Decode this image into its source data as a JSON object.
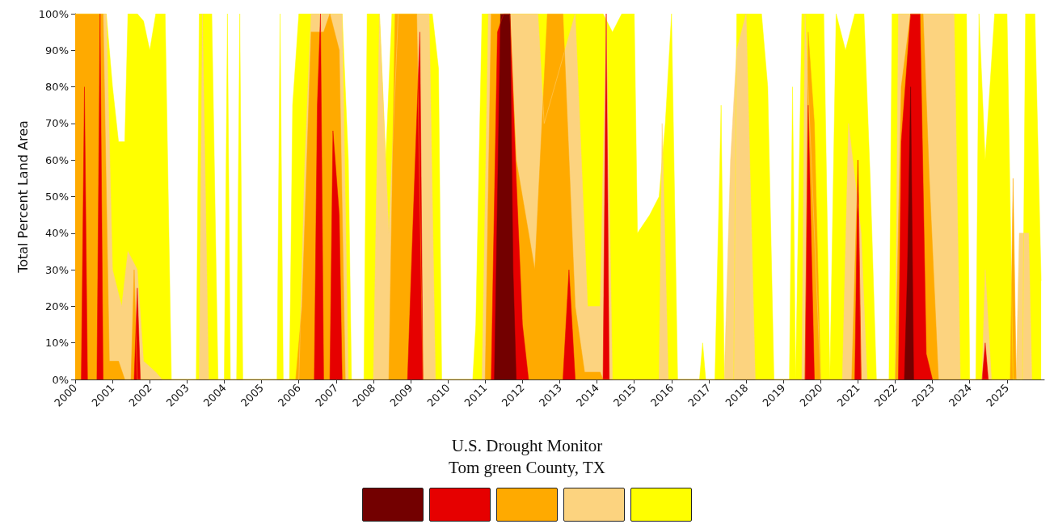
{
  "chart_data": {
    "type": "area",
    "title": "U.S. Drought Monitor",
    "subtitle": "Tom green County, TX",
    "ylabel": "Total Percent Land Area",
    "xlim": [
      "2000-01-01",
      "2026-01-01"
    ],
    "xticks": [
      "2000",
      "2001",
      "2002",
      "2003",
      "2004",
      "2005",
      "2006",
      "2007",
      "2008",
      "2009",
      "2010",
      "2011",
      "2012",
      "2013",
      "2014",
      "2015",
      "2016",
      "2017",
      "2018",
      "2019",
      "2020",
      "2021",
      "2022",
      "2023",
      "2024",
      "2025"
    ],
    "ylim": [
      0,
      100
    ],
    "yticks": [
      {
        "value": 0,
        "label": "0%"
      },
      {
        "value": 10,
        "label": "10%"
      },
      {
        "value": 20,
        "label": "20%"
      },
      {
        "value": 30,
        "label": "30%"
      },
      {
        "value": 40,
        "label": "40%"
      },
      {
        "value": 50,
        "label": "50%"
      },
      {
        "value": 60,
        "label": "60%"
      },
      {
        "value": 70,
        "label": "70%"
      },
      {
        "value": 80,
        "label": "80%"
      },
      {
        "value": 90,
        "label": "90%"
      },
      {
        "value": 100,
        "label": "100%"
      }
    ],
    "grid": false,
    "series": [
      {
        "color": "#ffff00",
        "x": [
          "2000-01",
          "2000-11",
          "2001-01",
          "2001-03",
          "2001-05",
          "2001-06",
          "2001-09",
          "2001-11",
          "2002-01",
          "2002-03",
          "2002-06",
          "2002-08",
          "2003-04",
          "2003-05",
          "2003-09",
          "2003-11",
          "2004-01",
          "2004-02",
          "2004-03",
          "2004-05",
          "2004-06",
          "2004-07",
          "2005-06",
          "2005-07",
          "2005-08",
          "2005-10",
          "2005-11",
          "2006-01",
          "2007-03",
          "2007-05",
          "2007-06",
          "2007-10",
          "2007-11",
          "2008-03",
          "2008-05",
          "2008-07",
          "2009-08",
          "2009-10",
          "2009-11",
          "2010-09",
          "2010-10",
          "2010-12",
          "2012-09",
          "2013-03",
          "2014-03",
          "2014-06",
          "2014-09",
          "2015-01",
          "2015-02",
          "2015-06",
          "2015-09",
          "2015-11",
          "2016-01",
          "2016-03",
          "2016-10",
          "2016-11",
          "2016-12",
          "2017-03",
          "2017-05",
          "2017-06",
          "2017-09",
          "2017-10",
          "2018-06",
          "2018-08",
          "2018-10",
          "2019-03",
          "2019-04",
          "2019-05",
          "2019-07",
          "2020-02",
          "2020-04",
          "2020-06",
          "2020-09",
          "2020-12",
          "2021-03",
          "2021-05",
          "2021-07",
          "2021-11",
          "2021-12",
          "2023-12",
          "2024-01",
          "2024-03",
          "2024-04",
          "2024-06",
          "2024-09",
          "2025-01",
          "2025-03",
          "2025-06",
          "2025-07",
          "2025-10",
          "2025-12"
        ],
        "values": [
          100,
          100,
          80,
          65,
          65,
          100,
          100,
          98,
          90,
          100,
          100,
          0,
          0,
          100,
          100,
          0,
          0,
          100,
          0,
          0,
          100,
          0,
          0,
          100,
          0,
          0,
          75,
          100,
          100,
          60,
          0,
          0,
          100,
          100,
          60,
          100,
          100,
          85,
          0,
          0,
          15,
          100,
          100,
          100,
          100,
          95,
          100,
          100,
          40,
          45,
          50,
          70,
          100,
          0,
          0,
          10,
          0,
          0,
          75,
          0,
          0,
          100,
          100,
          80,
          0,
          0,
          80,
          0,
          100,
          100,
          0,
          100,
          90,
          100,
          100,
          55,
          0,
          0,
          100,
          100,
          0,
          0,
          100,
          60,
          100,
          100,
          0,
          0,
          100,
          100,
          27
        ]
      },
      {
        "color": "#fcd37f",
        "x": [
          "2000-01",
          "2000-11",
          "2001-01",
          "2001-04",
          "2001-06",
          "2001-09",
          "2001-11",
          "2002-03",
          "2002-05",
          "2003-05",
          "2003-06",
          "2003-08",
          "2006-01",
          "2006-03",
          "2006-05",
          "2007-03",
          "2007-05",
          "2008-01",
          "2008-03",
          "2008-06",
          "2008-09",
          "2009-07",
          "2009-09",
          "2010-12",
          "2011-02",
          "2012-06",
          "2012-08",
          "2013-06",
          "2013-10",
          "2014-02",
          "2014-04",
          "2014-06",
          "2015-09",
          "2015-10",
          "2015-12",
          "2017-06",
          "2017-08",
          "2017-10",
          "2018-01",
          "2018-04",
          "2019-07",
          "2019-08",
          "2020-01",
          "2020-08",
          "2020-10",
          "2021-02",
          "2021-04",
          "2022-01",
          "2022-02",
          "2023-08",
          "2023-10",
          "2024-05",
          "2024-06",
          "2024-08",
          "2025-04",
          "2025-05",
          "2025-08",
          "2025-09"
        ],
        "values": [
          100,
          100,
          30,
          20,
          35,
          30,
          5,
          2,
          0,
          0,
          100,
          0,
          0,
          60,
          100,
          100,
          0,
          0,
          100,
          40,
          100,
          100,
          0,
          0,
          100,
          100,
          70,
          100,
          20,
          20,
          100,
          0,
          0,
          70,
          0,
          0,
          60,
          90,
          100,
          0,
          0,
          100,
          0,
          0,
          70,
          40,
          0,
          0,
          100,
          100,
          0,
          0,
          30,
          0,
          0,
          40,
          40,
          0
        ]
      },
      {
        "color": "#ffaa00",
        "x": [
          "2000-01",
          "2000-10",
          "2000-12",
          "2001-03",
          "2001-05",
          "2001-07",
          "2001-08",
          "2001-09",
          "2005-12",
          "2006-02",
          "2006-05",
          "2006-09",
          "2006-11",
          "2007-02",
          "2007-04",
          "2008-06",
          "2008-08",
          "2009-03",
          "2009-05",
          "2011-01",
          "2011-03",
          "2011-09",
          "2011-11",
          "2012-01",
          "2012-05",
          "2012-09",
          "2013-02",
          "2013-06",
          "2013-09",
          "2014-02",
          "2014-03",
          "2019-08",
          "2019-09",
          "2019-11",
          "2020-01",
          "2020-11",
          "2021-01",
          "2021-02",
          "2022-01",
          "2022-03",
          "2022-06",
          "2022-10",
          "2022-12",
          "2023-03",
          "2025-02",
          "2025-03",
          "2025-04"
        ],
        "values": [
          100,
          100,
          5,
          5,
          0,
          0,
          30,
          0,
          0,
          20,
          95,
          95,
          100,
          90,
          0,
          0,
          100,
          100,
          0,
          0,
          100,
          100,
          60,
          50,
          30,
          100,
          100,
          20,
          2,
          2,
          0,
          0,
          95,
          70,
          0,
          0,
          60,
          0,
          0,
          80,
          100,
          100,
          55,
          0,
          0,
          55,
          0
        ]
      },
      {
        "color": "#e60000",
        "x": [
          "2000-03",
          "2000-04",
          "2000-05",
          "2000-07",
          "2000-08",
          "2000-09",
          "2000-10",
          "2001-01",
          "2001-08",
          "2001-09",
          "2001-10",
          "2003-01",
          "2006-06",
          "2006-07",
          "2006-08",
          "2006-09",
          "2006-10",
          "2006-11",
          "2006-12",
          "2007-02",
          "2007-03",
          "2008-01",
          "2008-12",
          "2009-01",
          "2009-04",
          "2009-05",
          "2010-01",
          "2011-03",
          "2011-05",
          "2011-07",
          "2011-09",
          "2011-11",
          "2012-01",
          "2012-03",
          "2012-08",
          "2013-02",
          "2013-04",
          "2013-06",
          "2013-10",
          "2014-03",
          "2014-04",
          "2014-05",
          "2017-01",
          "2019-08",
          "2019-09",
          "2019-11",
          "2020-06",
          "2020-12",
          "2021-01",
          "2021-02",
          "2021-08",
          "2022-02",
          "2022-03",
          "2022-06",
          "2022-09",
          "2022-11",
          "2023-01",
          "2023-08",
          "2024-05",
          "2024-06",
          "2024-07"
        ],
        "values": [
          0,
          80,
          0,
          null,
          0,
          100,
          0,
          null,
          0,
          25,
          0,
          null,
          0,
          75,
          100,
          0,
          null,
          0,
          68,
          45,
          0,
          null,
          0,
          25,
          95,
          0,
          null,
          0,
          95,
          100,
          100,
          55,
          15,
          0,
          null,
          0,
          30,
          0,
          null,
          0,
          100,
          0,
          null,
          0,
          75,
          0,
          null,
          0,
          60,
          0,
          null,
          0,
          65,
          100,
          100,
          7,
          0,
          null,
          0,
          10,
          0
        ]
      },
      {
        "color": "#730000",
        "x": [
          "2011-04",
          "2011-06",
          "2011-09",
          "2011-10",
          "2011-11",
          "2017-01",
          "2022-04",
          "2022-05",
          "2022-06",
          "2022-07"
        ],
        "values": [
          0,
          100,
          100,
          30,
          0,
          null,
          0,
          30,
          80,
          0
        ]
      }
    ]
  }
}
